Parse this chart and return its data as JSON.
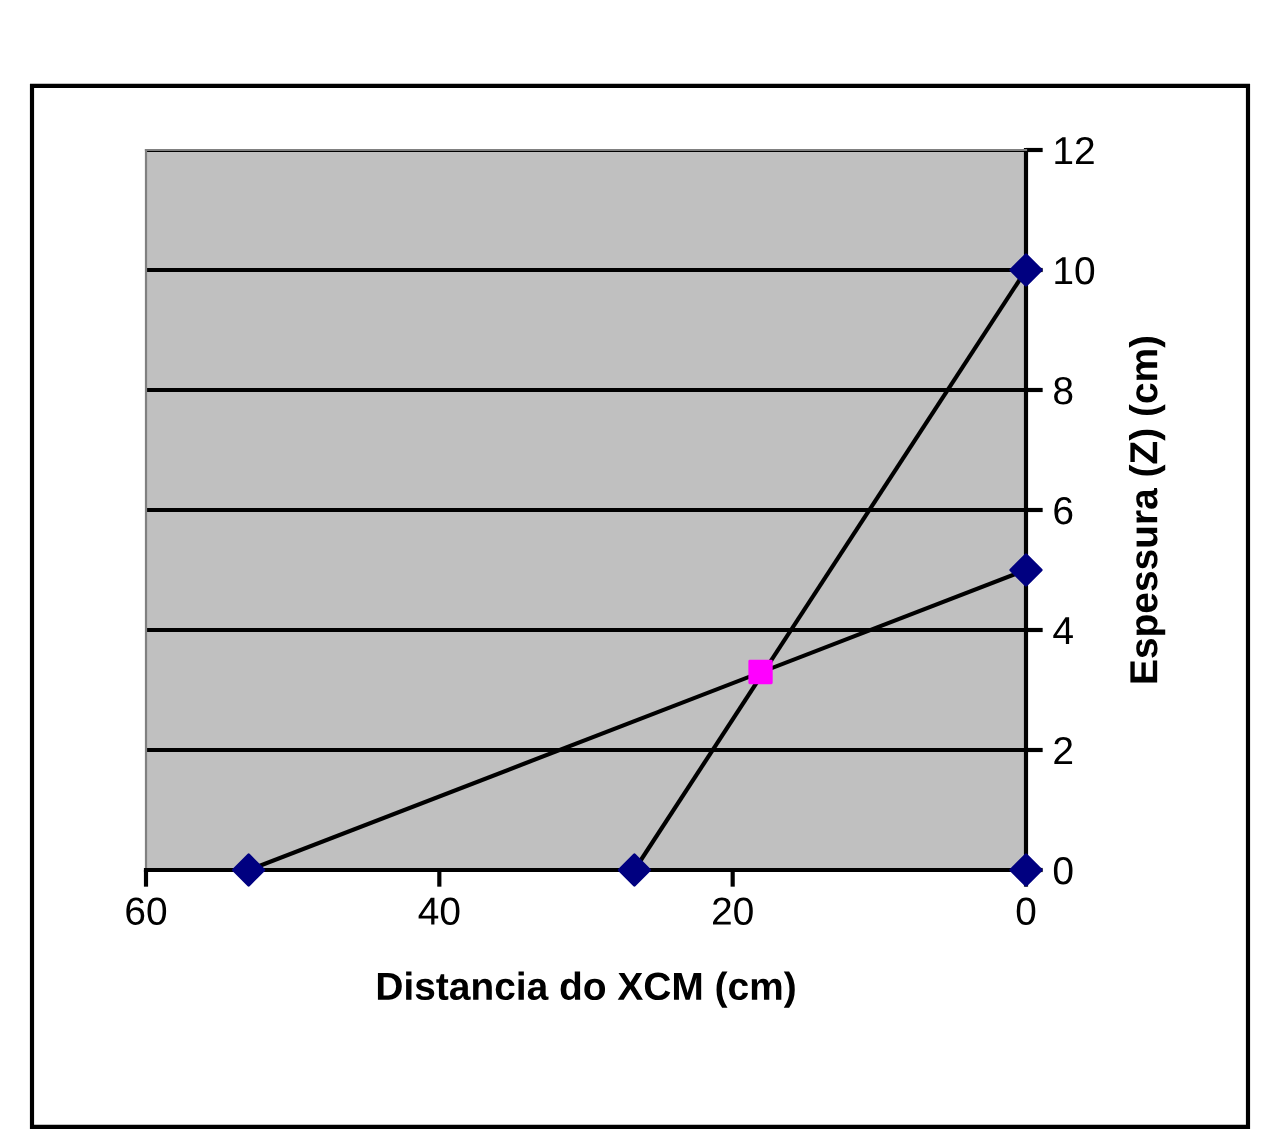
{
  "chart_data": {
    "type": "scatter",
    "xlabel": "Distancia do XCM (cm)",
    "ylabel": "Espessura (Z) (cm)",
    "xlim": [
      60,
      0
    ],
    "xticks": [
      60,
      40,
      20,
      0
    ],
    "ylim": [
      0,
      12
    ],
    "yticks": [
      0,
      2,
      4,
      6,
      8,
      10,
      12
    ],
    "grid": "y",
    "legend": false,
    "series": [
      {
        "type": "line",
        "x": [
          53,
          0
        ],
        "values": [
          0,
          5
        ],
        "color": "#000000",
        "marker": "none"
      },
      {
        "type": "line",
        "x": [
          26.7,
          0
        ],
        "values": [
          0,
          10
        ],
        "color": "#000000",
        "marker": "none"
      },
      {
        "x": [
          53,
          26.7,
          0,
          0,
          0
        ],
        "values": [
          0,
          0,
          0,
          10,
          5
        ],
        "color": "#000080",
        "marker": "diamond"
      },
      {
        "x": [
          18.1
        ],
        "values": [
          3.3
        ],
        "color": "#ff00ff",
        "marker": "square"
      }
    ]
  }
}
